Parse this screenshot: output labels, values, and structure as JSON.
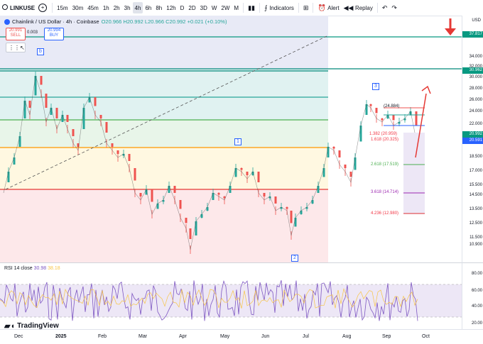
{
  "toolbar": {
    "symbol": "LINKUSE",
    "intervals": [
      "15m",
      "30m",
      "45m",
      "1h",
      "2h",
      "3h",
      "4h",
      "6h",
      "8h",
      "12h",
      "D",
      "2D",
      "3D",
      "W",
      "2W",
      "M"
    ],
    "active_interval": "4h",
    "indicators_label": "Indicators",
    "alert_label": "Alert",
    "replay_label": "Replay"
  },
  "legend": {
    "title": "Chainlink / US Dollar · 4h · Coinbase",
    "o": "20.966",
    "h": "20.992",
    "l": "20.966",
    "c": "20.992",
    "change": "+0.021 (+0.10%)"
  },
  "trade": {
    "sell_price": "20.991",
    "sell_label": "SELL",
    "buy_price": "20.994",
    "buy_label": "BUY",
    "spread": "0.003"
  },
  "price_axis": {
    "currency": "USD",
    "ticks": [
      "34.000",
      "32.000",
      "30.000",
      "28.000",
      "26.000",
      "24.000",
      "22.000",
      "20.000",
      "18.500",
      "17.000",
      "15.500",
      "14.500",
      "13.500",
      "12.500",
      "11.500",
      "10.900"
    ],
    "tag_top": "37.817",
    "tag_mid": "30.962",
    "tag_current": "20.992",
    "tag_current2": "20.591"
  },
  "fib_labels": [
    {
      "text": "1.382 (20.959)",
      "color": "#f23645"
    },
    {
      "text": "1.618 (20.325)",
      "color": "#f23645"
    },
    {
      "text": "2.618 (17.519)",
      "color": "#4caf50"
    },
    {
      "text": "3.618 (14.714)",
      "color": "#9c27b0"
    },
    {
      "text": "4.236 (12.980)",
      "color": "#f23645"
    },
    {
      "text": "(24.884)",
      "color": "#131722"
    }
  ],
  "wave_labels": {
    "a": "1",
    "b": "2",
    "c": "3",
    "d": "b"
  },
  "rsi": {
    "label": "RSI 14 close",
    "value1": "30.98",
    "value2": "38.18",
    "ticks": [
      "80.00",
      "60.00",
      "40.00",
      "20.00"
    ]
  },
  "time_axis": [
    "Dec",
    "2025",
    "Feb",
    "Mar",
    "Apr",
    "May",
    "Jun",
    "Jul",
    "Aug",
    "Sep",
    "Oct"
  ],
  "logo": "TradingView",
  "colors": {
    "bg": "#ffffff",
    "up": "#26a69a",
    "down": "#ef5350",
    "accent": "#2962ff"
  }
}
